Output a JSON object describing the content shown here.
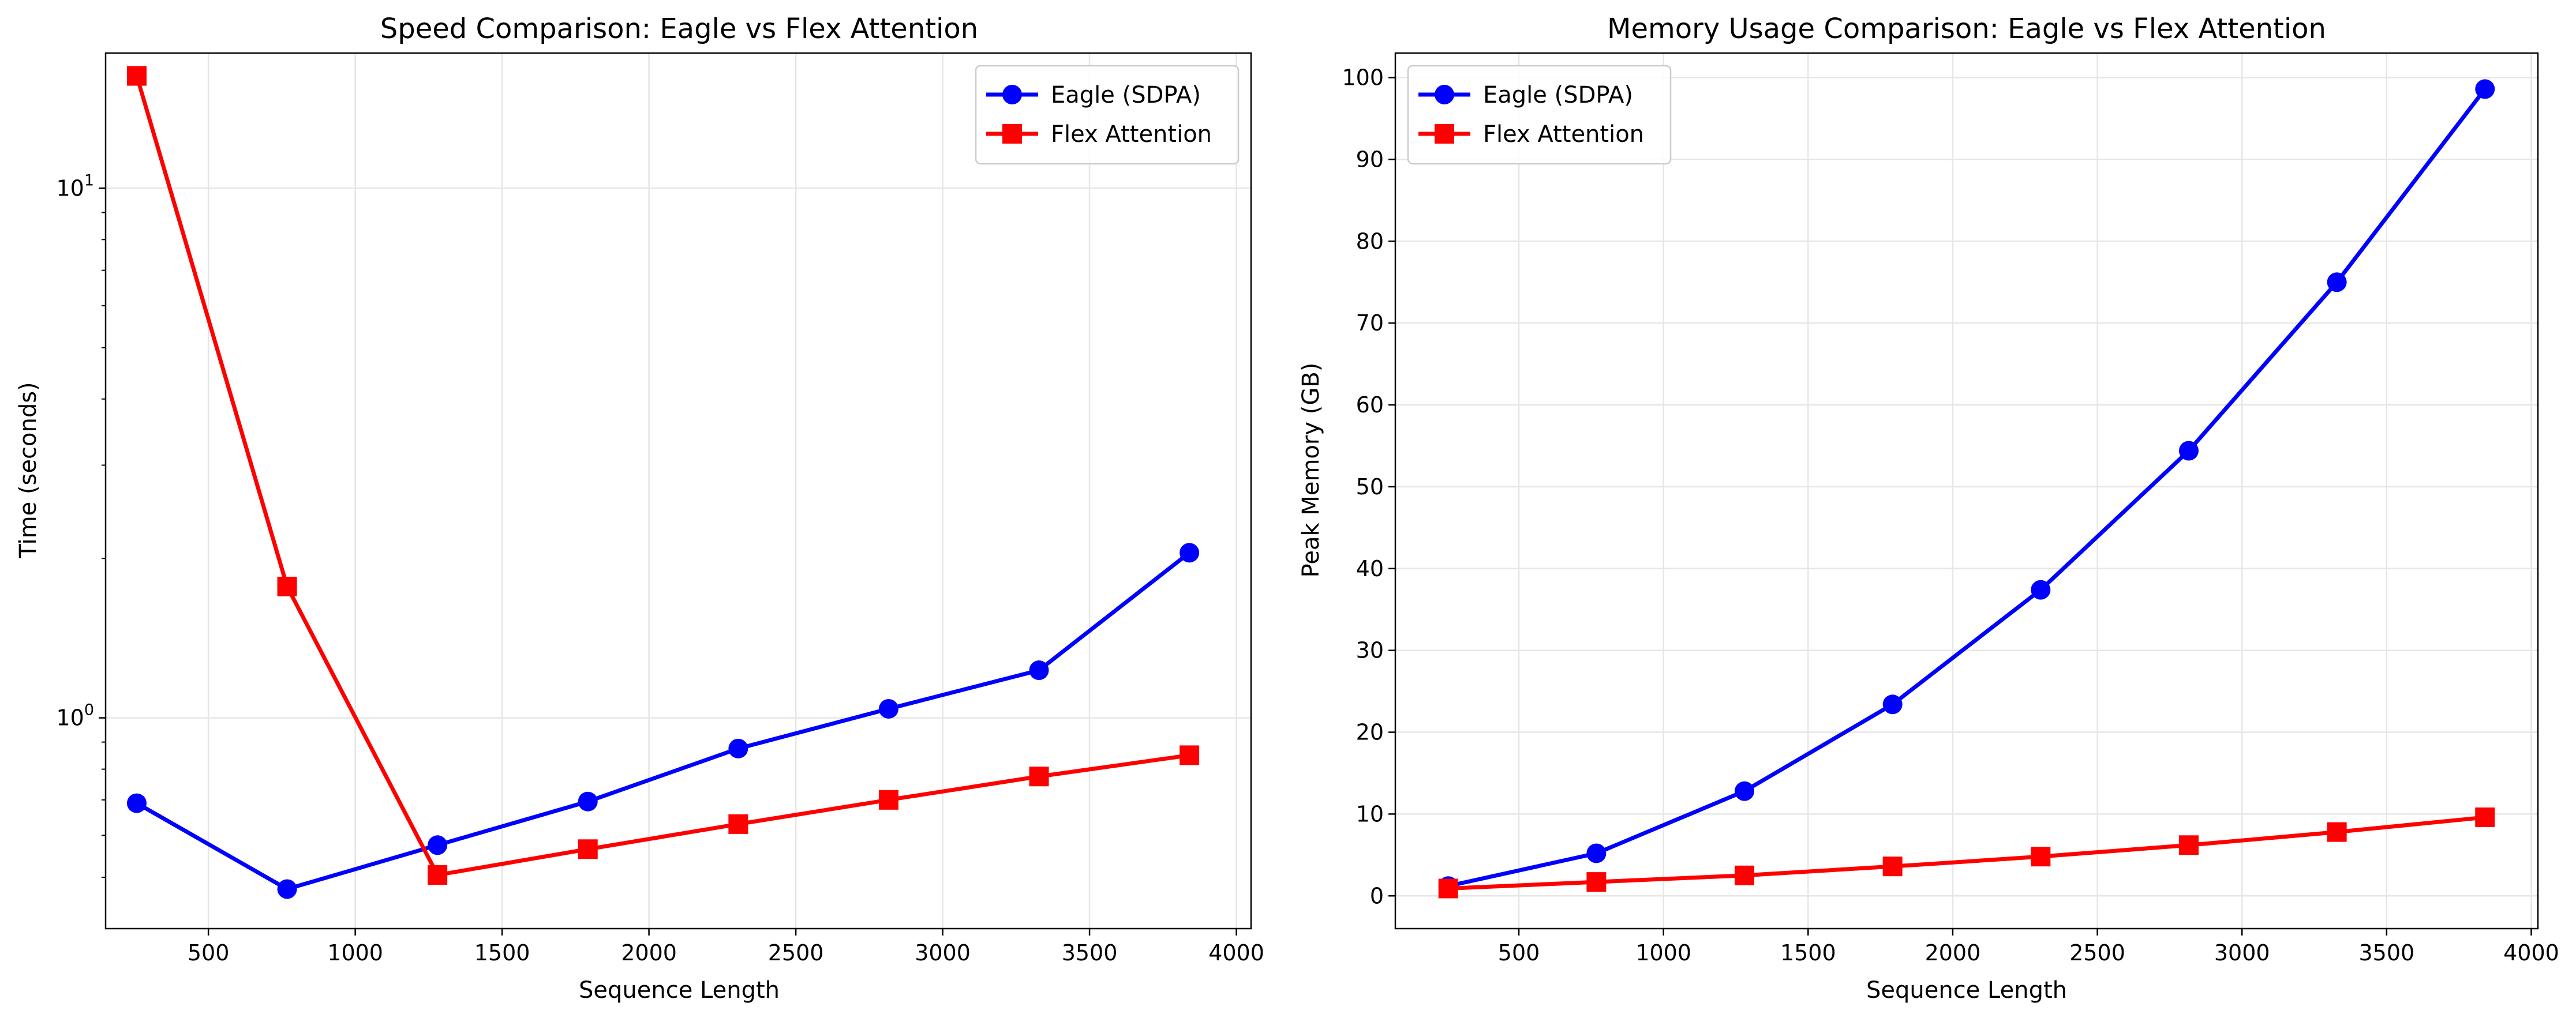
{
  "colors": {
    "eagle": "#0000ff",
    "flex": "#ff0000",
    "grid": "#e6e6e6",
    "axis": "#000000"
  },
  "chart_data": [
    {
      "type": "line",
      "title": "Speed Comparison: Eagle vs Flex Attention",
      "xlabel": "Sequence Length",
      "ylabel": "Time (seconds)",
      "yscale": "log",
      "xlim": [
        150,
        4050
      ],
      "ylim": [
        0.4,
        18
      ],
      "grid": true,
      "legend": "top-right",
      "x": [
        256,
        768,
        1280,
        1792,
        2304,
        2816,
        3328,
        3840
      ],
      "xticks": [
        500,
        1000,
        1500,
        2000,
        2500,
        3000,
        3500,
        4000
      ],
      "yticks": [
        {
          "value": 1,
          "base": "10",
          "exp": "0"
        },
        {
          "value": 10,
          "base": "10",
          "exp": "1"
        }
      ],
      "series": [
        {
          "name": "Eagle (SDPA)",
          "marker": "circle",
          "color": "#0000ff",
          "values": [
            0.69,
            0.475,
            0.575,
            0.695,
            0.875,
            1.04,
            1.23,
            2.05
          ]
        },
        {
          "name": "Flex Attention",
          "marker": "square",
          "color": "#ff0000",
          "values": [
            16.3,
            1.77,
            0.505,
            0.565,
            0.63,
            0.7,
            0.775,
            0.85
          ]
        }
      ]
    },
    {
      "type": "line",
      "title": "Memory Usage Comparison: Eagle vs Flex Attention",
      "xlabel": "Sequence Length",
      "ylabel": "Peak Memory (GB)",
      "yscale": "linear",
      "xlim": [
        73,
        4023
      ],
      "ylim": [
        -4,
        103
      ],
      "grid": true,
      "legend": "top-left",
      "x": [
        256,
        768,
        1280,
        1792,
        2304,
        2816,
        3328,
        3840
      ],
      "xticks": [
        500,
        1000,
        1500,
        2000,
        2500,
        3000,
        3500,
        4000
      ],
      "yticks": [
        0,
        10,
        20,
        30,
        40,
        50,
        60,
        70,
        80,
        90,
        100
      ],
      "series": [
        {
          "name": "Eagle (SDPA)",
          "marker": "circle",
          "color": "#0000ff",
          "values": [
            1.2,
            5.2,
            12.8,
            23.4,
            37.4,
            54.4,
            75.0,
            98.6
          ]
        },
        {
          "name": "Flex Attention",
          "marker": "square",
          "color": "#ff0000",
          "values": [
            0.9,
            1.7,
            2.5,
            3.6,
            4.8,
            6.2,
            7.8,
            9.6
          ]
        }
      ]
    }
  ]
}
